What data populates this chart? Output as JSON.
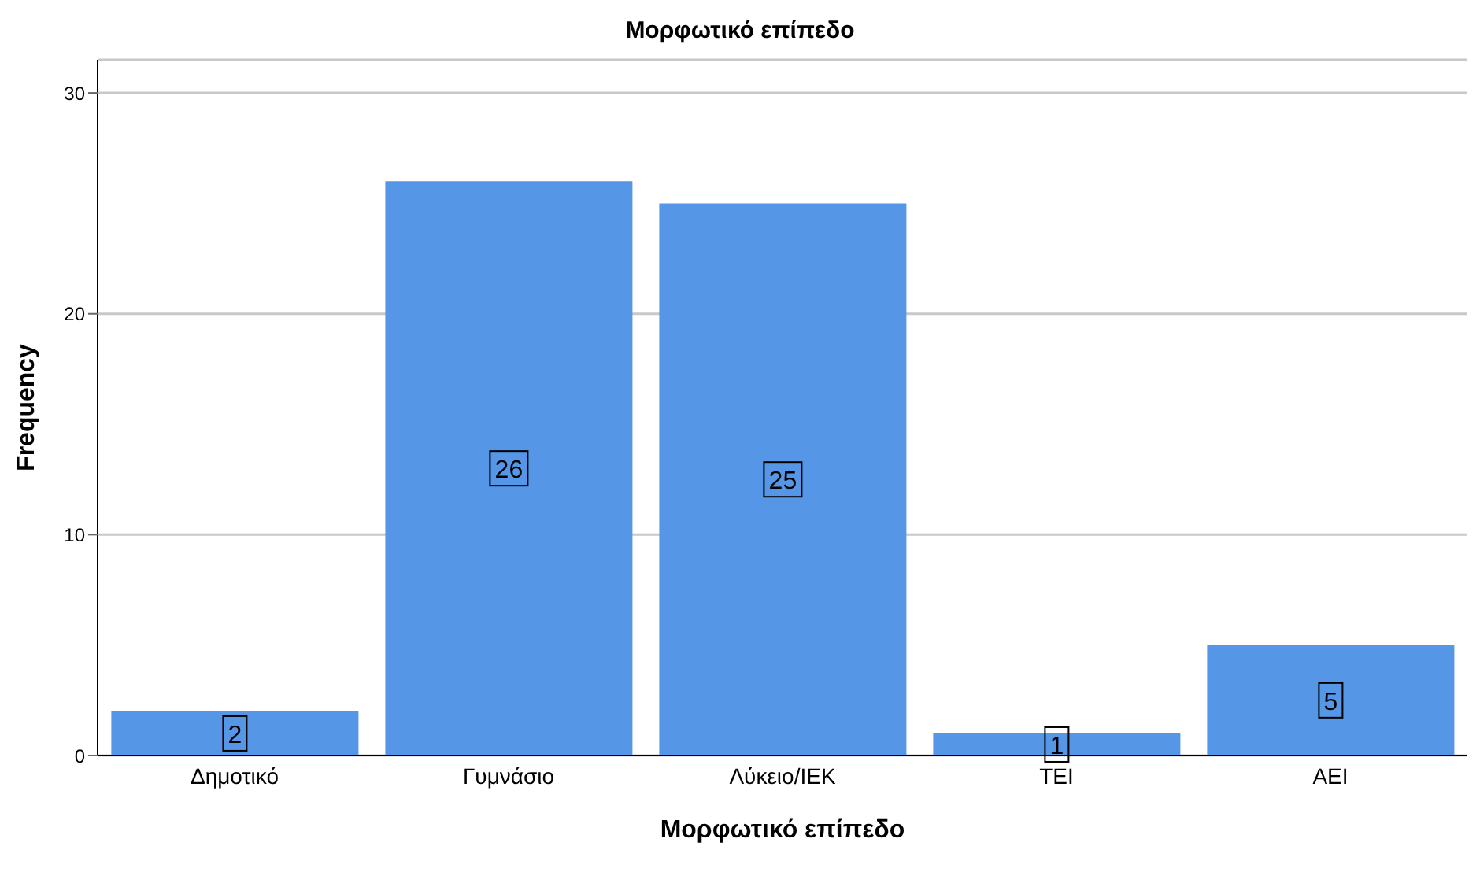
{
  "chart_data": {
    "type": "bar",
    "title": "Μορφωτικό επίπεδο",
    "xlabel": "Μορφωτικό επίπεδο",
    "ylabel": "Frequency",
    "categories": [
      "Δημοτικό",
      "Γυμνάσιο",
      "Λύκειο/ΙΕΚ",
      "ΤΕΙ",
      "ΑΕΙ"
    ],
    "values": [
      2,
      26,
      25,
      1,
      5
    ],
    "color": "#5596e6",
    "ylim": [
      0,
      31.5
    ],
    "yticks": [
      0,
      10,
      20,
      30
    ],
    "grid": "y",
    "data_labels": true
  }
}
